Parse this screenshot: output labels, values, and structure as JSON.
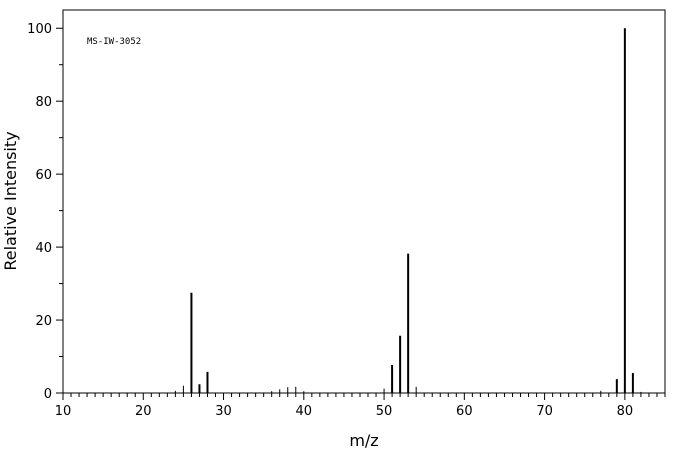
{
  "chart_data": {
    "type": "bar",
    "title": "",
    "annotation": "MS-IW-3052",
    "xlabel": "m/z",
    "ylabel": "Relative Intensity",
    "xlim": [
      10,
      85
    ],
    "ylim": [
      0,
      105
    ],
    "x_major_ticks": [
      10,
      20,
      30,
      40,
      50,
      60,
      70,
      80
    ],
    "y_major_ticks": [
      0,
      20,
      40,
      60,
      80,
      100
    ],
    "grid": false,
    "peaks": [
      {
        "mz": 24,
        "intensity": 0.6
      },
      {
        "mz": 25,
        "intensity": 2.0
      },
      {
        "mz": 26,
        "intensity": 27.5
      },
      {
        "mz": 27,
        "intensity": 2.4
      },
      {
        "mz": 28,
        "intensity": 5.8
      },
      {
        "mz": 36,
        "intensity": 0.5
      },
      {
        "mz": 37,
        "intensity": 1.0
      },
      {
        "mz": 38,
        "intensity": 1.6
      },
      {
        "mz": 39,
        "intensity": 1.7
      },
      {
        "mz": 40,
        "intensity": 0.5
      },
      {
        "mz": 50,
        "intensity": 1.2
      },
      {
        "mz": 51,
        "intensity": 7.7
      },
      {
        "mz": 52,
        "intensity": 15.7
      },
      {
        "mz": 53,
        "intensity": 38.2
      },
      {
        "mz": 54,
        "intensity": 1.7
      },
      {
        "mz": 77,
        "intensity": 0.6
      },
      {
        "mz": 79,
        "intensity": 3.8
      },
      {
        "mz": 80,
        "intensity": 100
      },
      {
        "mz": 81,
        "intensity": 5.5
      },
      {
        "mz": 82,
        "intensity": 0.3
      }
    ]
  }
}
